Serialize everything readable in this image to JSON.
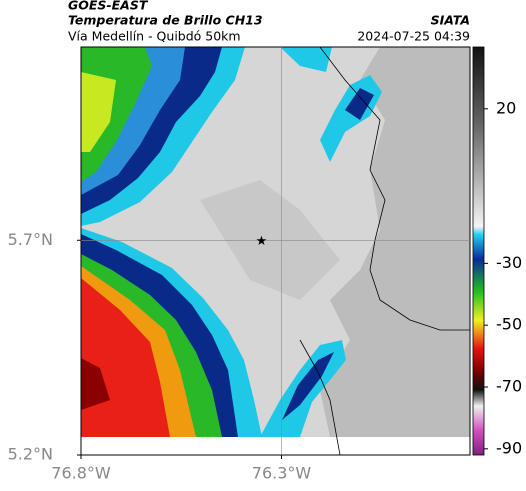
{
  "map": {
    "header": {
      "satellite": "GOES-EAST",
      "product": "Temperatura de Brillo CH13",
      "route": "Vía Medellín - Quibdó 50km",
      "source": "SIATA",
      "timestamp": "2024-07-25 04:39"
    },
    "xlim": [
      -76.8,
      -75.83
    ],
    "ylim": [
      5.2,
      6.15
    ],
    "xticks": [
      {
        "value": -76.8,
        "label": "76.8°W"
      },
      {
        "value": -76.3,
        "label": "76.3°W"
      }
    ],
    "yticks": [
      {
        "value": 5.7,
        "label": "5.7°N"
      },
      {
        "value": 5.2,
        "label": "5.2°N"
      }
    ],
    "gridlines": [
      {
        "lon": -76.3,
        "lat": 5.7
      }
    ],
    "station": {
      "lon": -76.35,
      "lat": 5.7
    },
    "colorbar": {
      "clim": [
        -92,
        40
      ],
      "ticks": [
        20,
        -30,
        -50,
        -70,
        -90
      ]
    }
  }
}
